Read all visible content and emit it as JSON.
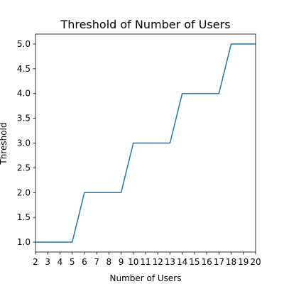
{
  "chart_data": {
    "type": "line",
    "title": "Threshold of Number of Users",
    "xlabel": "Number of Users",
    "ylabel": "Threshold",
    "x": [
      2,
      3,
      4,
      5,
      6,
      7,
      8,
      9,
      10,
      11,
      12,
      13,
      14,
      15,
      16,
      17,
      18,
      19,
      20
    ],
    "series": [
      {
        "values": [
          1.0,
          1.0,
          1.0,
          1.0,
          2.0,
          2.0,
          2.0,
          2.0,
          3.0,
          3.0,
          3.0,
          3.0,
          4.0,
          4.0,
          4.0,
          4.0,
          5.0,
          5.0,
          5.0
        ],
        "color": "#1f77b4"
      }
    ],
    "xlim": [
      2,
      20
    ],
    "ylim": [
      0.8,
      5.2
    ],
    "x_ticks": [
      2,
      3,
      4,
      5,
      6,
      7,
      8,
      9,
      10,
      11,
      12,
      13,
      14,
      15,
      16,
      17,
      18,
      19,
      20
    ],
    "y_ticks": [
      "1.0",
      "1.5",
      "2.0",
      "2.5",
      "3.0",
      "3.5",
      "4.0",
      "4.5",
      "5.0"
    ],
    "grid": false,
    "legend": false
  }
}
